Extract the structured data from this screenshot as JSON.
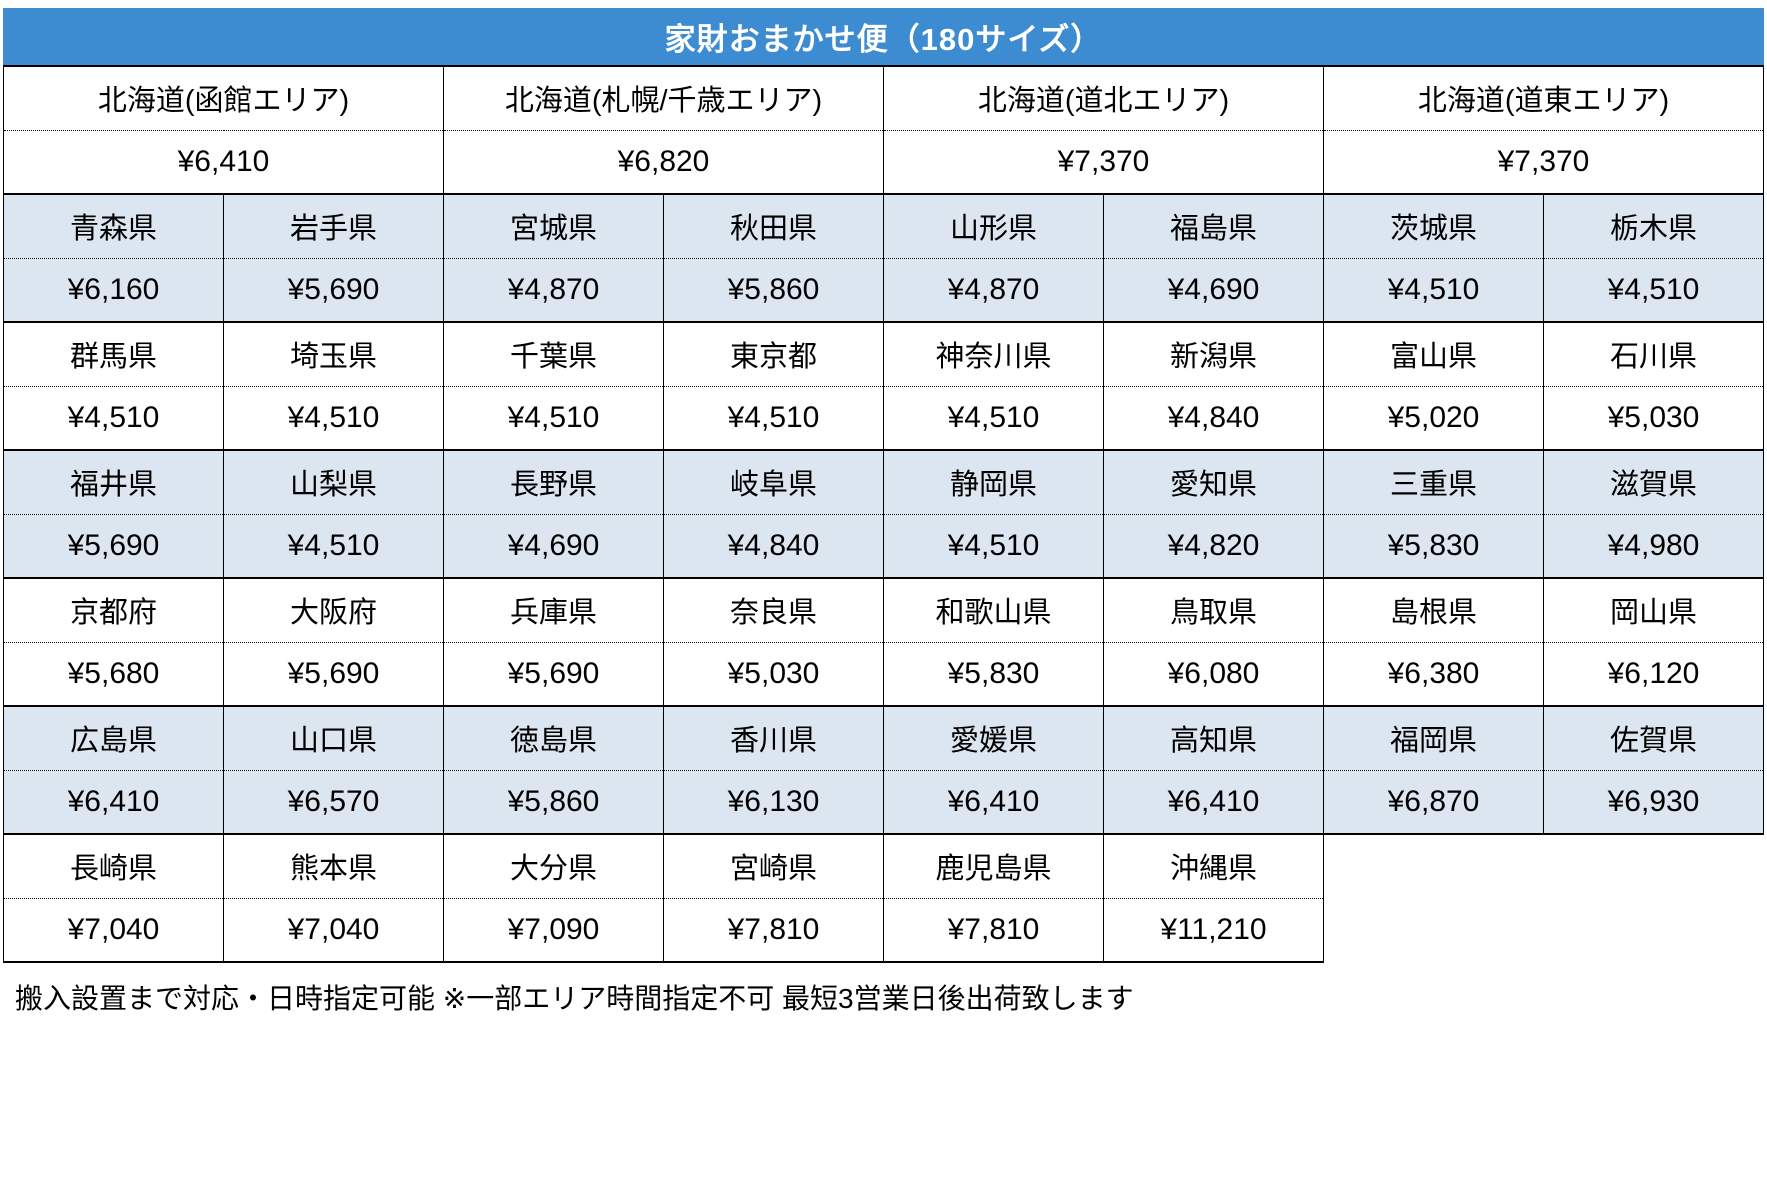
{
  "title": "家財おまかせ便（180サイズ）",
  "footer": "搬入設置まで対応・日時指定可能 ※一部エリア時間指定不可 最短3営業日後出荷致します",
  "colors": {
    "header_bg": "#3d8cd1",
    "header_text": "#ffffff",
    "row_shaded_bg": "#dce6f1",
    "border": "#000000"
  },
  "hokkaido_row": [
    {
      "area": "北海道(函館エリア)",
      "price": "¥6,410"
    },
    {
      "area": "北海道(札幌/千歳エリア)",
      "price": "¥6,820"
    },
    {
      "area": "北海道(道北エリア)",
      "price": "¥7,370"
    },
    {
      "area": "北海道(道東エリア)",
      "price": "¥7,370"
    }
  ],
  "prefecture_rows": [
    {
      "shaded": true,
      "cells": [
        {
          "name": "青森県",
          "price": "¥6,160"
        },
        {
          "name": "岩手県",
          "price": "¥5,690"
        },
        {
          "name": "宮城県",
          "price": "¥4,870"
        },
        {
          "name": "秋田県",
          "price": "¥5,860"
        },
        {
          "name": "山形県",
          "price": "¥4,870"
        },
        {
          "name": "福島県",
          "price": "¥4,690"
        },
        {
          "name": "茨城県",
          "price": "¥4,510"
        },
        {
          "name": "栃木県",
          "price": "¥4,510"
        }
      ]
    },
    {
      "shaded": false,
      "cells": [
        {
          "name": "群馬県",
          "price": "¥4,510"
        },
        {
          "name": "埼玉県",
          "price": "¥4,510"
        },
        {
          "name": "千葉県",
          "price": "¥4,510"
        },
        {
          "name": "東京都",
          "price": "¥4,510"
        },
        {
          "name": "神奈川県",
          "price": "¥4,510"
        },
        {
          "name": "新潟県",
          "price": "¥4,840"
        },
        {
          "name": "富山県",
          "price": "¥5,020"
        },
        {
          "name": "石川県",
          "price": "¥5,030"
        }
      ]
    },
    {
      "shaded": true,
      "cells": [
        {
          "name": "福井県",
          "price": "¥5,690"
        },
        {
          "name": "山梨県",
          "price": "¥4,510"
        },
        {
          "name": "長野県",
          "price": "¥4,690"
        },
        {
          "name": "岐阜県",
          "price": "¥4,840"
        },
        {
          "name": "静岡県",
          "price": "¥4,510"
        },
        {
          "name": "愛知県",
          "price": "¥4,820"
        },
        {
          "name": "三重県",
          "price": "¥5,830"
        },
        {
          "name": "滋賀県",
          "price": "¥4,980"
        }
      ]
    },
    {
      "shaded": false,
      "cells": [
        {
          "name": "京都府",
          "price": "¥5,680"
        },
        {
          "name": "大阪府",
          "price": "¥5,690"
        },
        {
          "name": "兵庫県",
          "price": "¥5,690"
        },
        {
          "name": "奈良県",
          "price": "¥5,030"
        },
        {
          "name": "和歌山県",
          "price": "¥5,830"
        },
        {
          "name": "鳥取県",
          "price": "¥6,080"
        },
        {
          "name": "島根県",
          "price": "¥6,380"
        },
        {
          "name": "岡山県",
          "price": "¥6,120"
        }
      ]
    },
    {
      "shaded": true,
      "cells": [
        {
          "name": "広島県",
          "price": "¥6,410"
        },
        {
          "name": "山口県",
          "price": "¥6,570"
        },
        {
          "name": "徳島県",
          "price": "¥5,860"
        },
        {
          "name": "香川県",
          "price": "¥6,130"
        },
        {
          "name": "愛媛県",
          "price": "¥6,410"
        },
        {
          "name": "高知県",
          "price": "¥6,410"
        },
        {
          "name": "福岡県",
          "price": "¥6,870"
        },
        {
          "name": "佐賀県",
          "price": "¥6,930"
        }
      ]
    },
    {
      "shaded": false,
      "cells": [
        {
          "name": "長崎県",
          "price": "¥7,040"
        },
        {
          "name": "熊本県",
          "price": "¥7,040"
        },
        {
          "name": "大分県",
          "price": "¥7,090"
        },
        {
          "name": "宮崎県",
          "price": "¥7,810"
        },
        {
          "name": "鹿児島県",
          "price": "¥7,810"
        },
        {
          "name": "沖縄県",
          "price": "¥11,210"
        }
      ]
    }
  ]
}
